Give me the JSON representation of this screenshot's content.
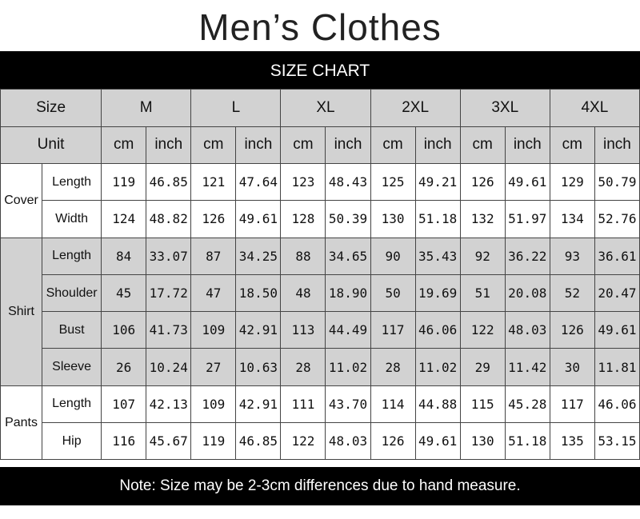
{
  "title": "Men’s Clothes",
  "banner": "SIZE CHART",
  "header": {
    "size_label": "Size",
    "unit_label": "Unit",
    "sizes": [
      "M",
      "L",
      "XL",
      "2XL",
      "3XL",
      "4XL"
    ],
    "units": [
      "cm",
      "inch"
    ]
  },
  "groups": [
    {
      "name": "Cover",
      "shade": "#ffffff",
      "rows": [
        {
          "label": "Length",
          "values": [
            "119",
            "46.85",
            "121",
            "47.64",
            "123",
            "48.43",
            "125",
            "49.21",
            "126",
            "49.61",
            "129",
            "50.79"
          ]
        },
        {
          "label": "Width",
          "values": [
            "124",
            "48.82",
            "126",
            "49.61",
            "128",
            "50.39",
            "130",
            "51.18",
            "132",
            "51.97",
            "134",
            "52.76"
          ]
        }
      ]
    },
    {
      "name": "Shirt",
      "shade": "#d2d2d2",
      "rows": [
        {
          "label": "Length",
          "values": [
            "84",
            "33.07",
            "87",
            "34.25",
            "88",
            "34.65",
            "90",
            "35.43",
            "92",
            "36.22",
            "93",
            "36.61"
          ]
        },
        {
          "label": "Shoulder",
          "values": [
            "45",
            "17.72",
            "47",
            "18.50",
            "48",
            "18.90",
            "50",
            "19.69",
            "51",
            "20.08",
            "52",
            "20.47"
          ]
        },
        {
          "label": "Bust",
          "values": [
            "106",
            "41.73",
            "109",
            "42.91",
            "113",
            "44.49",
            "117",
            "46.06",
            "122",
            "48.03",
            "126",
            "49.61"
          ]
        },
        {
          "label": "Sleeve",
          "values": [
            "26",
            "10.24",
            "27",
            "10.63",
            "28",
            "11.02",
            "28",
            "11.02",
            "29",
            "11.42",
            "30",
            "11.81"
          ]
        }
      ]
    },
    {
      "name": "Pants",
      "shade": "#ffffff",
      "rows": [
        {
          "label": "Length",
          "values": [
            "107",
            "42.13",
            "109",
            "42.91",
            "111",
            "43.70",
            "114",
            "44.88",
            "115",
            "45.28",
            "117",
            "46.06"
          ]
        },
        {
          "label": "Hip",
          "values": [
            "116",
            "45.67",
            "119",
            "46.85",
            "122",
            "48.03",
            "126",
            "49.61",
            "130",
            "51.18",
            "135",
            "53.15"
          ]
        }
      ]
    }
  ],
  "footer": "Note: Size may be 2-3cm differences due to hand measure."
}
